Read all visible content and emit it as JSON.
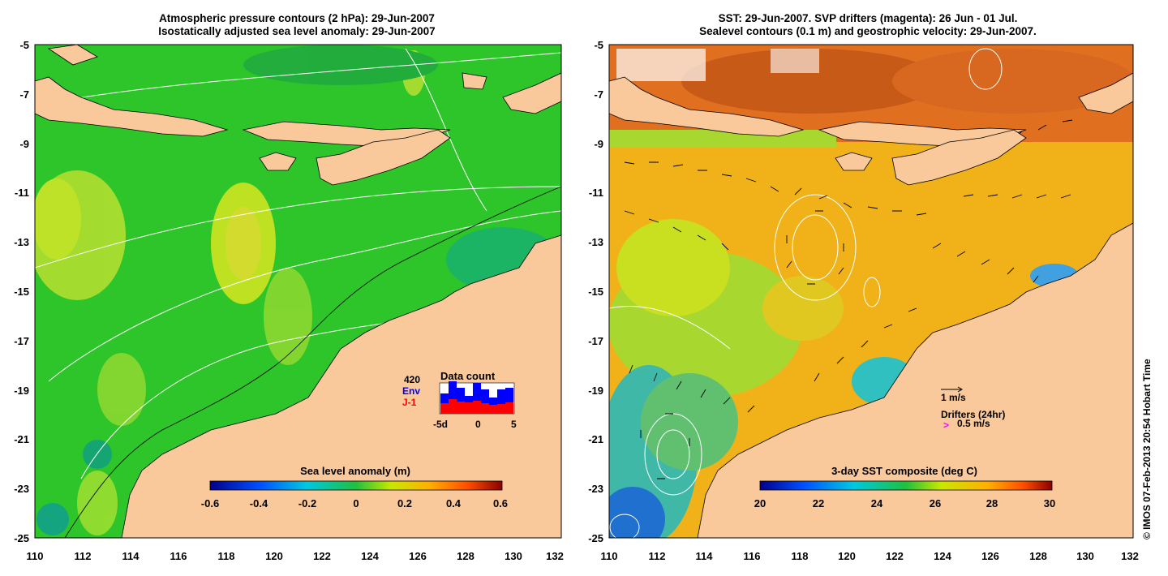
{
  "colors": {
    "land": "#f9c89b",
    "ocean_left": "#2ec52a",
    "ocean_right": "#f0b218",
    "env": "#0000ff",
    "j1": "#ff0000",
    "drifter": "#ff00ff"
  },
  "left_panel": {
    "title_line1": "Atmospheric pressure contours (2 hPa): 29-Jun-2007",
    "title_line2": "Isostatically adjusted sea level anomaly: 29-Jun-2007",
    "colorbar": {
      "label": "Sea level anomaly (m)",
      "ticks": [
        "-0.6",
        "-0.4",
        "-0.2",
        "0",
        "0.2",
        "0.4",
        "0.6"
      ]
    },
    "data_count": {
      "title": "Data count",
      "max_label": "420",
      "env_label": "Env",
      "j1_label": "J-1",
      "x_ticks": [
        "-5d",
        "0",
        "5"
      ]
    }
  },
  "right_panel": {
    "title_line1": "SST: 29-Jun-2007. SVP drifters (magenta): 26 Jun - 01 Jul.",
    "title_line2": "Sealevel contours (0.1 m) and geostrophic velocity: 29-Jun-2007.",
    "colorbar": {
      "label": "3-day SST composite (deg C)",
      "ticks": [
        "20",
        "22",
        "24",
        "26",
        "28",
        "30"
      ]
    },
    "legend": {
      "velocity_label": "1 m/s",
      "drifters_label": "Drifters (24hr)",
      "drifter_marker": ">",
      "drifter_speed": "0.5 m/s"
    }
  },
  "axes": {
    "lat_ticks": [
      "-5",
      "-7",
      "-9",
      "-11",
      "-13",
      "-15",
      "-17",
      "-19",
      "-21",
      "-23",
      "-25"
    ],
    "lon_ticks": [
      "110",
      "112",
      "114",
      "116",
      "118",
      "120",
      "122",
      "124",
      "126",
      "128",
      "130",
      "132"
    ]
  },
  "copyright": "© IMOS 07-Feb-2013 20:54 Hobart Time"
}
